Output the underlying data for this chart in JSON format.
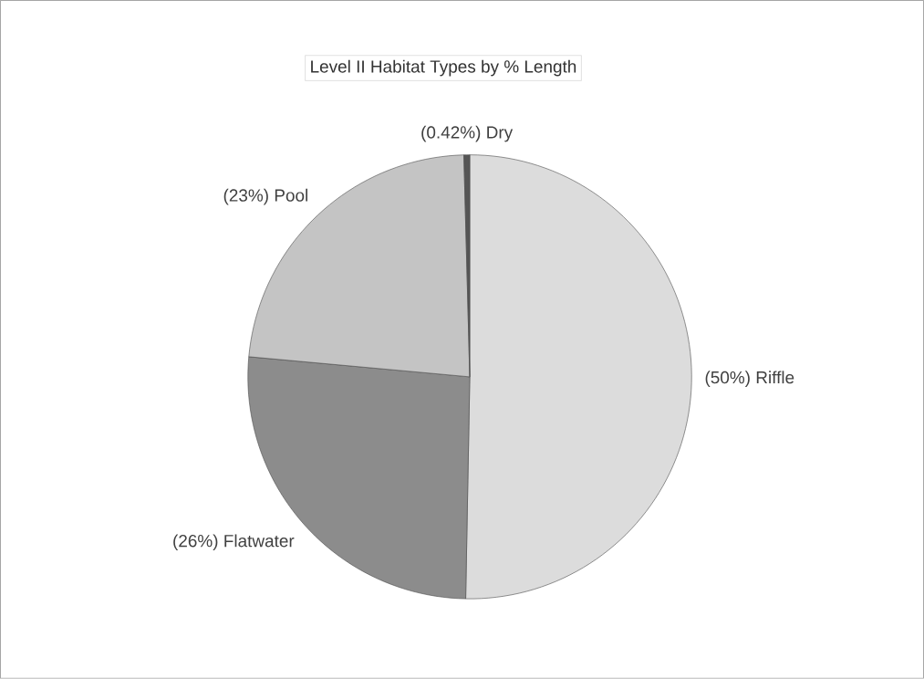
{
  "chart_data": {
    "type": "pie",
    "title": "Level II Habitat Types by % Length",
    "categories": [
      "Riffle",
      "Flatwater",
      "Pool",
      "Dry"
    ],
    "values": [
      50,
      26,
      23,
      0.42
    ],
    "value_labels": [
      "(50%)",
      "(26%)",
      "(23%)",
      "(0.42%)"
    ],
    "colors": [
      "#dcdcdc",
      "#8c8c8c",
      "#c4c4c4",
      "#555555"
    ]
  }
}
